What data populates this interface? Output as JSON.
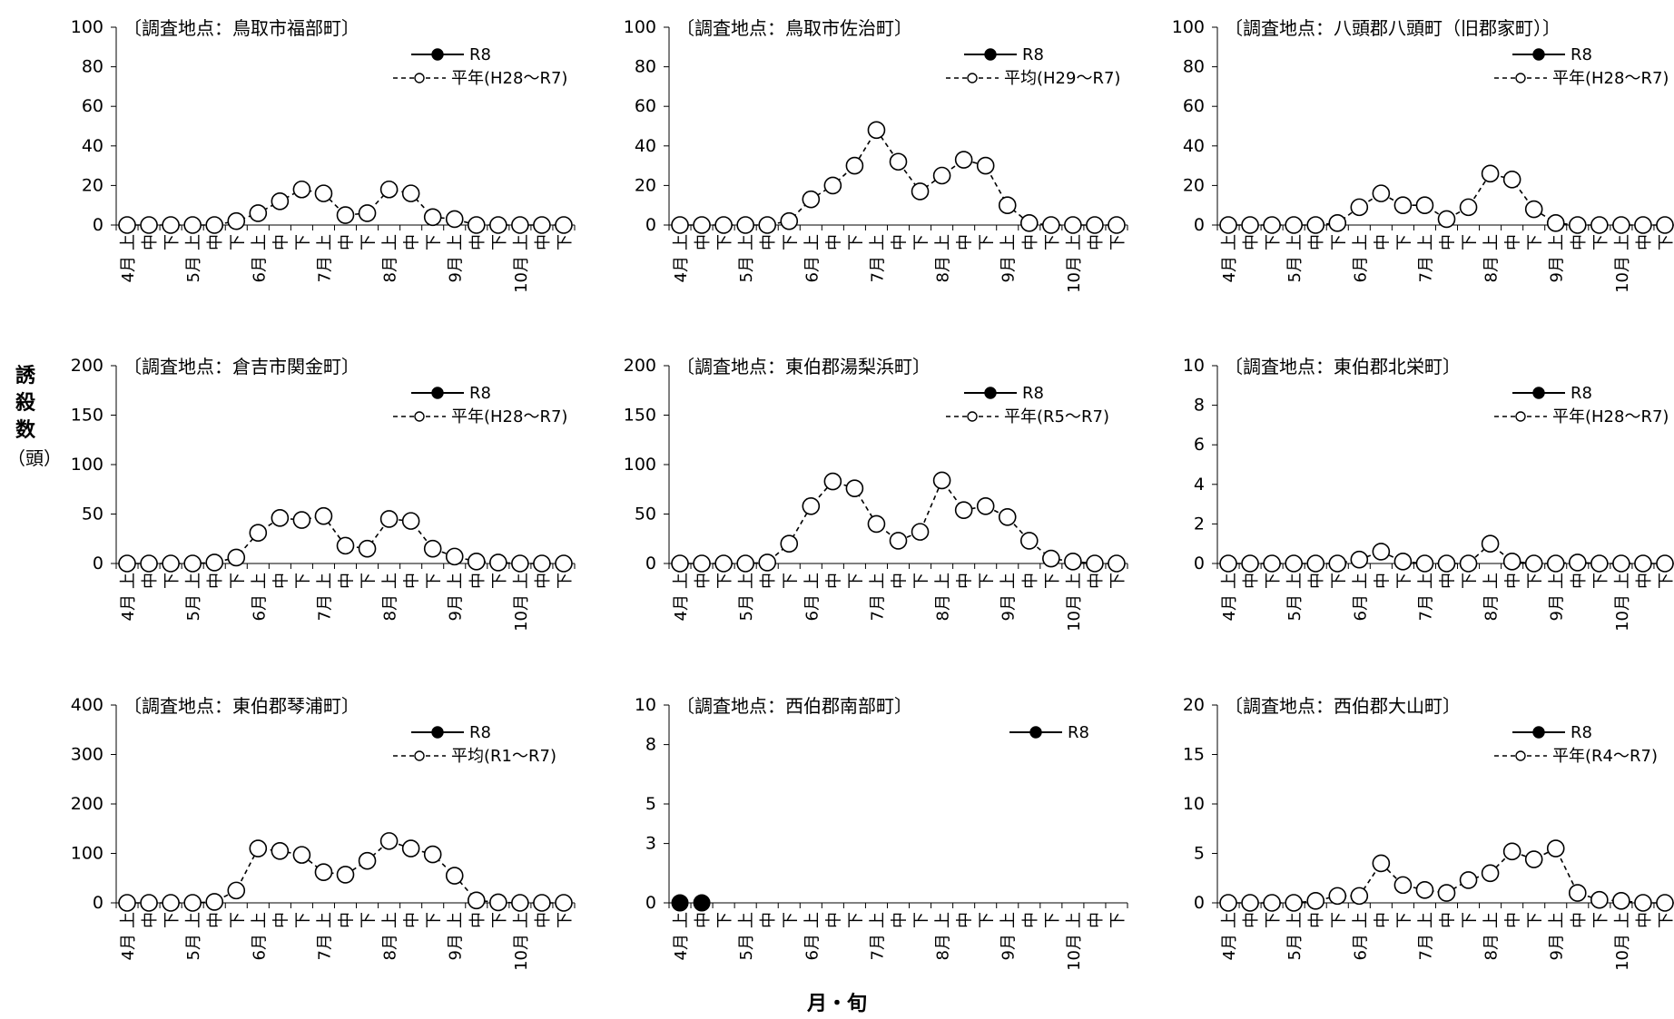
{
  "y_title_chars": [
    "誘",
    "殺",
    "数"
  ],
  "y_title_unit": "（頭）",
  "x_title": "月・旬",
  "decade_labels": [
    "上",
    "中",
    "下"
  ],
  "month_labels": [
    "4月",
    "5月",
    "6月",
    "7月",
    "8月",
    "9月",
    "10月"
  ],
  "chart_data": [
    {
      "type": "line",
      "title": "〔調査地点：鳥取市福部町〕",
      "ylim": [
        0,
        100
      ],
      "yticks": [
        0,
        20,
        40,
        60,
        80,
        100
      ],
      "series": [
        {
          "name": "R8",
          "style": "solid-filled",
          "values": [
            0,
            0
          ]
        },
        {
          "name": "平年(H28〜R7)",
          "style": "dashed-open",
          "values": [
            0,
            0,
            0,
            0,
            0,
            2,
            6,
            12,
            18,
            16,
            5,
            6,
            18,
            16,
            4,
            3,
            0,
            0,
            0,
            0,
            0
          ]
        }
      ]
    },
    {
      "type": "line",
      "title": "〔調査地点：鳥取市佐治町〕",
      "ylim": [
        0,
        100
      ],
      "yticks": [
        0,
        20,
        40,
        60,
        80,
        100
      ],
      "series": [
        {
          "name": "R8",
          "style": "solid-filled",
          "values": [
            0,
            0,
            0
          ]
        },
        {
          "name": "平均(H29〜R7)",
          "style": "dashed-open",
          "values": [
            0,
            0,
            0,
            0,
            0,
            2,
            13,
            20,
            30,
            48,
            32,
            17,
            25,
            33,
            30,
            10,
            1,
            0,
            0,
            0,
            0
          ]
        }
      ]
    },
    {
      "type": "line",
      "title": "〔調査地点：八頭郡八頭町（旧郡家町）〕",
      "ylim": [
        0,
        100
      ],
      "yticks": [
        0,
        20,
        40,
        60,
        80,
        100
      ],
      "series": [
        {
          "name": "R8",
          "style": "solid-filled",
          "values": [
            0,
            0
          ]
        },
        {
          "name": "平年(H28〜R7)",
          "style": "dashed-open",
          "values": [
            0,
            0,
            0,
            0,
            0,
            1,
            9,
            16,
            10,
            10,
            3,
            9,
            26,
            23,
            8,
            1,
            0,
            0,
            0,
            0,
            0
          ]
        }
      ]
    },
    {
      "type": "line",
      "title": "〔調査地点：倉吉市関金町〕",
      "ylim": [
        0,
        200
      ],
      "yticks": [
        0,
        50,
        100,
        150,
        200
      ],
      "series": [
        {
          "name": "R8",
          "style": "solid-filled",
          "values": [
            0,
            0
          ]
        },
        {
          "name": "平年(H28〜R7)",
          "style": "dashed-open",
          "values": [
            0,
            0,
            0,
            0,
            1,
            6,
            31,
            46,
            44,
            48,
            18,
            15,
            45,
            43,
            15,
            7,
            2,
            1,
            0,
            0,
            0
          ]
        }
      ]
    },
    {
      "type": "line",
      "title": "〔調査地点：東伯郡湯梨浜町〕",
      "ylim": [
        0,
        200
      ],
      "yticks": [
        0,
        50,
        100,
        150,
        200
      ],
      "series": [
        {
          "name": "R8",
          "style": "solid-filled",
          "values": [
            0,
            0
          ]
        },
        {
          "name": "平年(R5〜R7)",
          "style": "dashed-open",
          "values": [
            0,
            0,
            0,
            0,
            1,
            20,
            58,
            83,
            76,
            40,
            23,
            32,
            84,
            54,
            58,
            47,
            23,
            5,
            2,
            0,
            0
          ]
        }
      ]
    },
    {
      "type": "line",
      "title": "〔調査地点：東伯郡北栄町〕",
      "ylim": [
        0,
        10
      ],
      "yticks": [
        0,
        2,
        4,
        6,
        8,
        10
      ],
      "series": [
        {
          "name": "R8",
          "style": "solid-filled",
          "values": [
            0,
            0
          ]
        },
        {
          "name": "平年(H28〜R7)",
          "style": "dashed-open",
          "values": [
            0,
            0,
            0,
            0,
            0,
            0,
            0.2,
            0.6,
            0.1,
            0,
            0,
            0,
            1.0,
            0.1,
            0,
            0,
            0.05,
            0,
            0,
            0,
            0
          ]
        }
      ]
    },
    {
      "type": "line",
      "title": "〔調査地点：東伯郡琴浦町〕",
      "ylim": [
        0,
        400
      ],
      "yticks": [
        0,
        100,
        200,
        300,
        400
      ],
      "series": [
        {
          "name": "R8",
          "style": "solid-filled",
          "values": [
            0,
            0
          ]
        },
        {
          "name": "平均(R1〜R7)",
          "style": "dashed-open",
          "values": [
            0,
            0,
            0,
            0,
            2,
            25,
            110,
            105,
            97,
            62,
            57,
            85,
            125,
            110,
            98,
            55,
            5,
            1,
            0,
            0,
            0
          ]
        }
      ]
    },
    {
      "type": "line",
      "title": "〔調査地点：西伯郡南部町〕",
      "ylim": [
        0,
        10
      ],
      "yticks": [
        0,
        3,
        5,
        8,
        10
      ],
      "series": [
        {
          "name": "R8",
          "style": "solid-filled",
          "values": [
            0,
            0
          ]
        }
      ]
    },
    {
      "type": "line",
      "title": "〔調査地点：西伯郡大山町〕",
      "ylim": [
        0,
        20
      ],
      "yticks": [
        0,
        5,
        10,
        15,
        20
      ],
      "series": [
        {
          "name": "R8",
          "style": "solid-filled",
          "values": [
            0,
            0
          ]
        },
        {
          "name": "平年(R4〜R7)",
          "style": "dashed-open",
          "values": [
            0,
            0,
            0,
            0,
            0.2,
            0.7,
            0.7,
            4.0,
            1.8,
            1.3,
            1.0,
            2.3,
            3.0,
            5.2,
            4.4,
            5.5,
            1.0,
            0.3,
            0.2,
            0,
            0
          ]
        }
      ]
    }
  ]
}
